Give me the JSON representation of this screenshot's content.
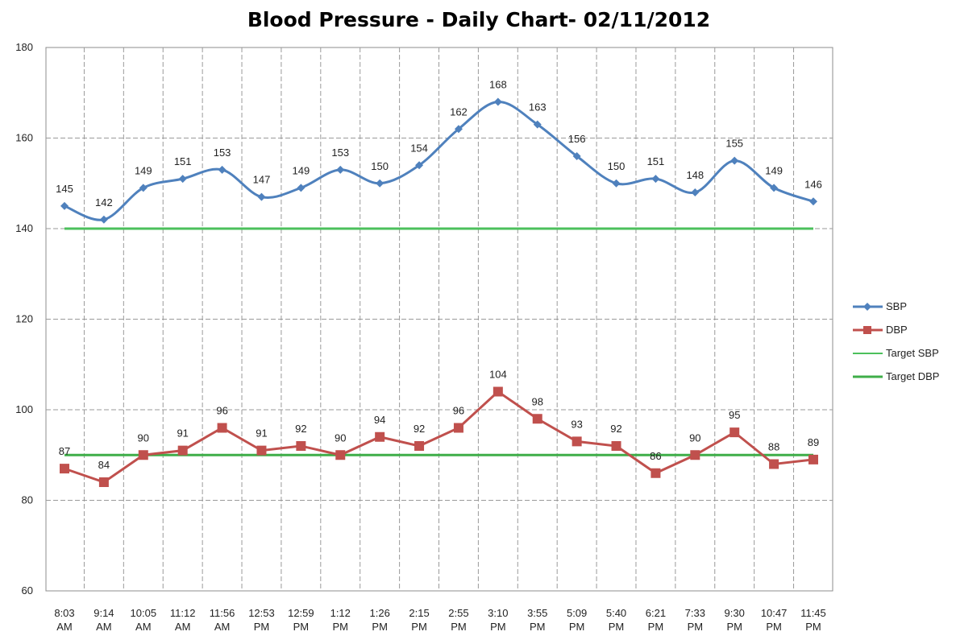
{
  "chart_data": {
    "type": "line",
    "title": "Blood Pressure - Daily Chart- 02/11/2012",
    "xlabel": "",
    "ylabel": "",
    "ylim": [
      60,
      180
    ],
    "yticks": [
      60,
      80,
      100,
      120,
      140,
      160,
      180
    ],
    "grid": true,
    "legend_position": "right",
    "categories": [
      [
        "8:03",
        "AM"
      ],
      [
        "9:14",
        "AM"
      ],
      [
        "10:05",
        "AM"
      ],
      [
        "11:12",
        "AM"
      ],
      [
        "11:56",
        "AM"
      ],
      [
        "12:53",
        "PM"
      ],
      [
        "12:59",
        "PM"
      ],
      [
        "1:12",
        "PM"
      ],
      [
        "1:26",
        "PM"
      ],
      [
        "2:15",
        "PM"
      ],
      [
        "2:55",
        "PM"
      ],
      [
        "3:10",
        "PM"
      ],
      [
        "3:55",
        "PM"
      ],
      [
        "5:09",
        "PM"
      ],
      [
        "5:40",
        "PM"
      ],
      [
        "6:21",
        "PM"
      ],
      [
        "7:33",
        "PM"
      ],
      [
        "9:30",
        "PM"
      ],
      [
        "10:47",
        "PM"
      ],
      [
        "11:45",
        "PM"
      ]
    ],
    "series": [
      {
        "name": "SBP",
        "color": "#4f81bd",
        "marker": "diamond",
        "values": [
          145,
          142,
          149,
          151,
          153,
          147,
          149,
          153,
          150,
          154,
          162,
          168,
          163,
          156,
          150,
          151,
          148,
          155,
          149,
          146
        ]
      },
      {
        "name": "DBP",
        "color": "#c0504d",
        "marker": "square",
        "values": [
          87,
          84,
          90,
          91,
          96,
          91,
          92,
          90,
          94,
          92,
          96,
          104,
          98,
          93,
          92,
          86,
          90,
          95,
          88,
          89
        ]
      },
      {
        "name": "Target SBP",
        "color": "#4cc05c",
        "marker": "none",
        "values": [
          140,
          140,
          140,
          140,
          140,
          140,
          140,
          140,
          140,
          140,
          140,
          140,
          140,
          140,
          140,
          140,
          140,
          140,
          140,
          140
        ]
      },
      {
        "name": "Target DBP",
        "color": "#3fae49",
        "marker": "none",
        "values": [
          90,
          90,
          90,
          90,
          90,
          90,
          90,
          90,
          90,
          90,
          90,
          90,
          90,
          90,
          90,
          90,
          90,
          90,
          90,
          90
        ]
      }
    ]
  }
}
